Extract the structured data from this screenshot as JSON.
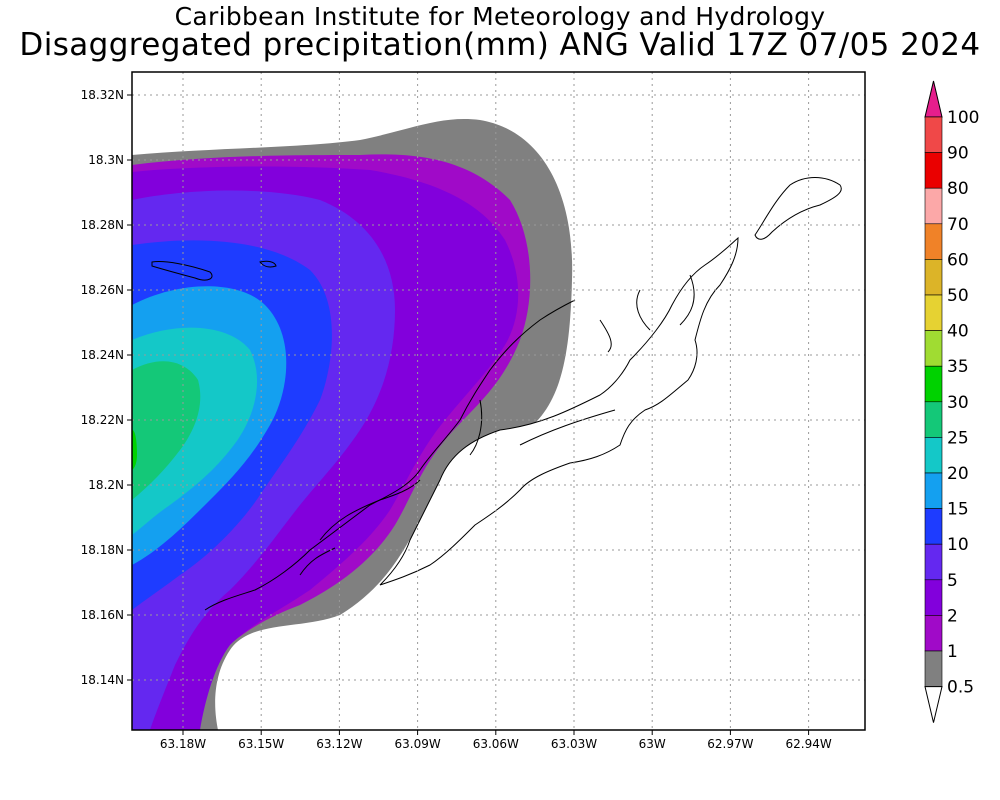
{
  "header": {
    "line1": "Caribbean Institute for Meteorology and Hydrology",
    "line2": "Disaggregated precipitation(mm) ANG Valid 17Z 07/05 2024"
  },
  "axes": {
    "x_ticks": [
      "63.18W",
      "63.15W",
      "63.12W",
      "63.09W",
      "63.06W",
      "63.03W",
      "63W",
      "62.97W",
      "62.94W"
    ],
    "y_ticks": [
      "18.32N",
      "18.3N",
      "18.28N",
      "18.26N",
      "18.24N",
      "18.22N",
      "18.2N",
      "18.18N",
      "18.16N",
      "18.14N"
    ]
  },
  "colorbar": {
    "levels": [
      {
        "label": "100",
        "color": "#f04848"
      },
      {
        "label": "90",
        "color": "#ea0000"
      },
      {
        "label": "80",
        "color": "#fca8a8"
      },
      {
        "label": "70",
        "color": "#f08228"
      },
      {
        "label": "60",
        "color": "#dcb428"
      },
      {
        "label": "50",
        "color": "#e6d232"
      },
      {
        "label": "40",
        "color": "#a0dc32"
      },
      {
        "label": "35",
        "color": "#00d200"
      },
      {
        "label": "30",
        "color": "#14c878"
      },
      {
        "label": "25",
        "color": "#14c8c8"
      },
      {
        "label": "20",
        "color": "#14a0f0"
      },
      {
        "label": "15",
        "color": "#1e3cff"
      },
      {
        "label": "10",
        "color": "#6428f0"
      },
      {
        "label": "5",
        "color": "#8200dc"
      },
      {
        "label": "2",
        "color": "#a00ac8"
      },
      {
        "label": "1",
        "color": "#808080"
      },
      {
        "label": "0.5",
        "color": "#ffffff"
      }
    ],
    "top_arrow_color": "#e61e8c"
  },
  "fields": {
    "gray": "#808080",
    "purple1": "#a00ac8",
    "purple2": "#8200dc",
    "violet": "#6428f0",
    "blue": "#1e3cff",
    "lightblue": "#14a0f0",
    "cyan": "#14c8c8",
    "teal": "#14c878",
    "green": "#00d200"
  }
}
